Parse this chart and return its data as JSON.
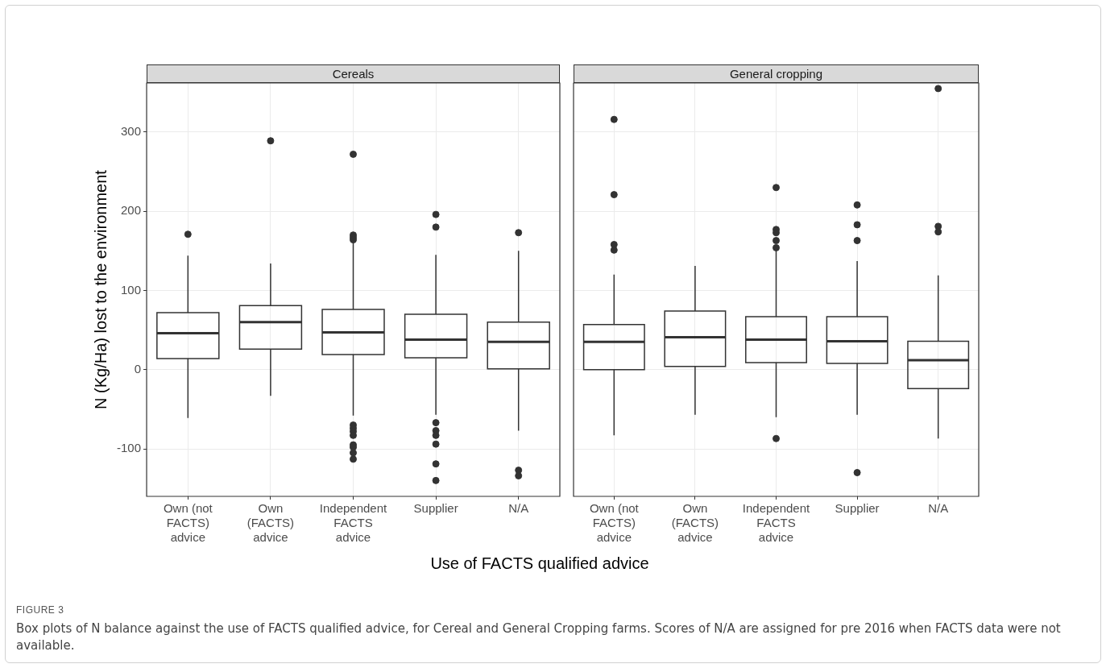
{
  "chart_data": [
    {
      "type": "box",
      "title": "Cereals",
      "ylabel": "N (Kg/Ha) lost to the environment",
      "xlabel": "Use of FACTS qualified advice",
      "annotations": [
        "FIGURE 3",
        "Box plots of N balance against the use of FACTS qualified advice, for Cereal and General Cropping farms. Scores of N/A are assigned for pre 2016 when FACTS data were not available."
      ],
      "color": "#333333",
      "grid": true,
      "ylim": [
        -160,
        362
      ],
      "yticks": [
        -100,
        0,
        100,
        200,
        300
      ],
      "categories": [
        "Own (not FACTS) advice",
        "Own (FACTS) advice",
        "Independent FACTS advice",
        "Supplier",
        "N/A"
      ],
      "boxes": [
        {
          "low": -61,
          "q1": 14,
          "median": 46,
          "q3": 72,
          "high": 144,
          "outliers": [
            171
          ]
        },
        {
          "low": -33,
          "q1": 26,
          "median": 60,
          "q3": 81,
          "high": 134,
          "outliers": [
            289
          ]
        },
        {
          "low": -58,
          "q1": 19,
          "median": 47,
          "q3": 76,
          "high": 161,
          "outliers": [
            272,
            170,
            167,
            164,
            -70,
            -74,
            -78,
            -83,
            -95,
            -98,
            -105,
            -113
          ]
        },
        {
          "low": -57,
          "q1": 15,
          "median": 38,
          "q3": 70,
          "high": 145,
          "outliers": [
            196,
            180,
            -67,
            -77,
            -83,
            -94,
            -119,
            -140
          ]
        },
        {
          "low": -77,
          "q1": 1,
          "median": 35,
          "q3": 60,
          "high": 150,
          "outliers": [
            173,
            -127,
            -134
          ]
        }
      ]
    },
    {
      "type": "box",
      "title": "General cropping",
      "color": "#333333",
      "grid": true,
      "tick_labels": "x",
      "ylim": [
        -160,
        362
      ],
      "yticks": [
        -100,
        0,
        100,
        200,
        300
      ],
      "categories": [
        "Own (not FACTS) advice",
        "Own (FACTS) advice",
        "Independent FACTS advice",
        "Supplier",
        "N/A"
      ],
      "boxes": [
        {
          "low": -83,
          "q1": 0,
          "median": 35,
          "q3": 57,
          "high": 120,
          "outliers": [
            316,
            221,
            158,
            151
          ]
        },
        {
          "low": -57,
          "q1": 4,
          "median": 41,
          "q3": 74,
          "high": 131
        },
        {
          "low": -60,
          "q1": 9,
          "median": 38,
          "q3": 67,
          "high": 151,
          "outliers": [
            230,
            177,
            173,
            163,
            154,
            -87
          ]
        },
        {
          "low": -57,
          "q1": 8,
          "median": 36,
          "q3": 67,
          "high": 137,
          "outliers": [
            208,
            183,
            163,
            -130
          ]
        },
        {
          "low": -87,
          "q1": -24,
          "median": 12,
          "q3": 36,
          "high": 119,
          "outliers": [
            355,
            181,
            174
          ]
        }
      ]
    }
  ]
}
